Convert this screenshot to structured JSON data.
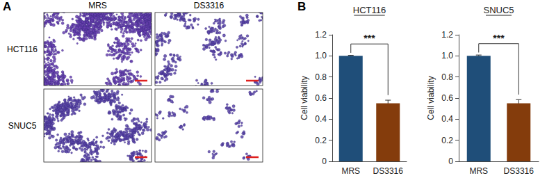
{
  "panel_labels": [
    "A",
    "B"
  ],
  "image_panel": {
    "columns": [
      "MRS",
      "DS3316"
    ],
    "rows": [
      "HCT116",
      "SNUC5"
    ]
  },
  "chart_data": [
    {
      "type": "bar",
      "title": "HCT116",
      "y_label": "Cell viability",
      "categories": [
        "MRS",
        "DS3316"
      ],
      "values": [
        1.0,
        0.55
      ],
      "errors": [
        0.005,
        0.03
      ],
      "colors": [
        "#1f4e79",
        "#843c0c"
      ],
      "ylim": [
        0,
        1.2
      ],
      "yticks": [
        0,
        0.2,
        0.4,
        0.6,
        0.8,
        {
          "value": 1,
          "label": "1.0"
        },
        1.2
      ],
      "annotations": [
        "***"
      ],
      "grid": false
    },
    {
      "type": "bar",
      "title": "SNUC5",
      "y_label": "Cell viability",
      "categories": [
        "MRS",
        "DS3316"
      ],
      "values": [
        1.0,
        0.55
      ],
      "errors": [
        0.008,
        0.035
      ],
      "colors": [
        "#1f4e79",
        "#843c0c"
      ],
      "ylim": [
        0,
        1.2
      ],
      "yticks": [
        0,
        0.2,
        0.4,
        0.6,
        0.8,
        {
          "value": 1,
          "label": "1.0"
        },
        1.2
      ],
      "annotations": [
        "***"
      ],
      "grid": false
    }
  ]
}
